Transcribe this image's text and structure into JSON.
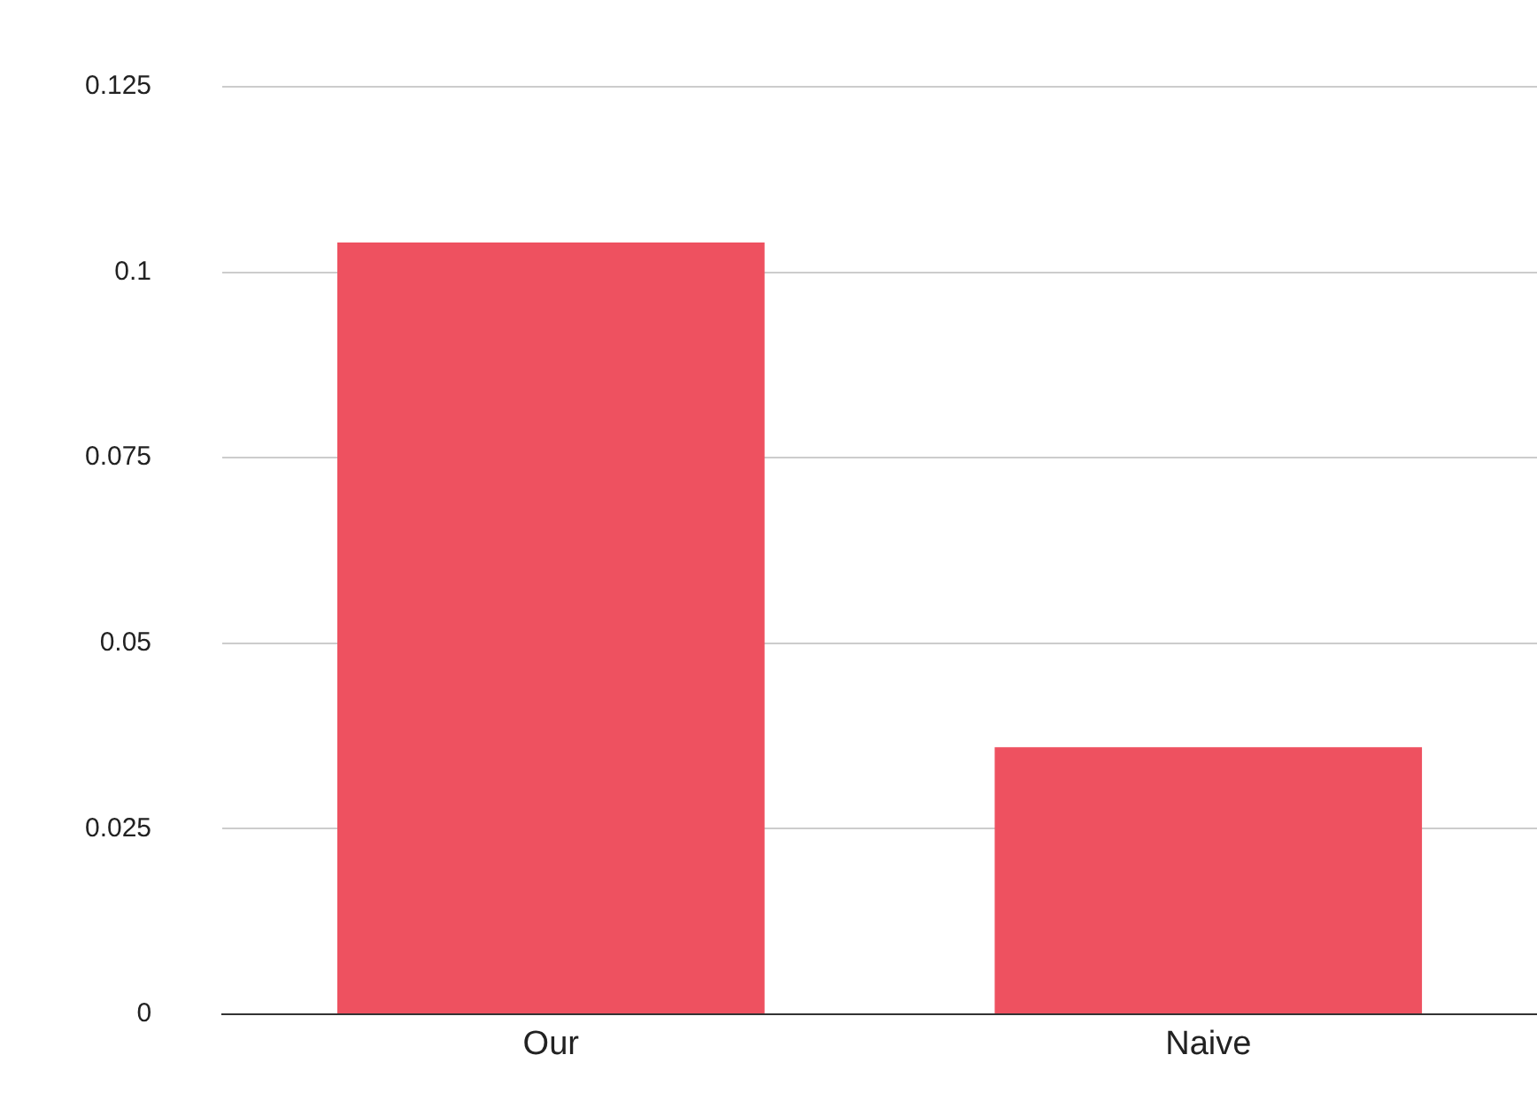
{
  "chart_data": {
    "type": "bar",
    "categories": [
      "Our",
      "Naive"
    ],
    "values": [
      0.104,
      0.036
    ],
    "color": "#ee5160",
    "ylim": [
      0,
      0.125
    ],
    "yticks": [
      0,
      0.025,
      0.05,
      0.075,
      0.1,
      0.125
    ],
    "grid": "y",
    "legend": false
  }
}
